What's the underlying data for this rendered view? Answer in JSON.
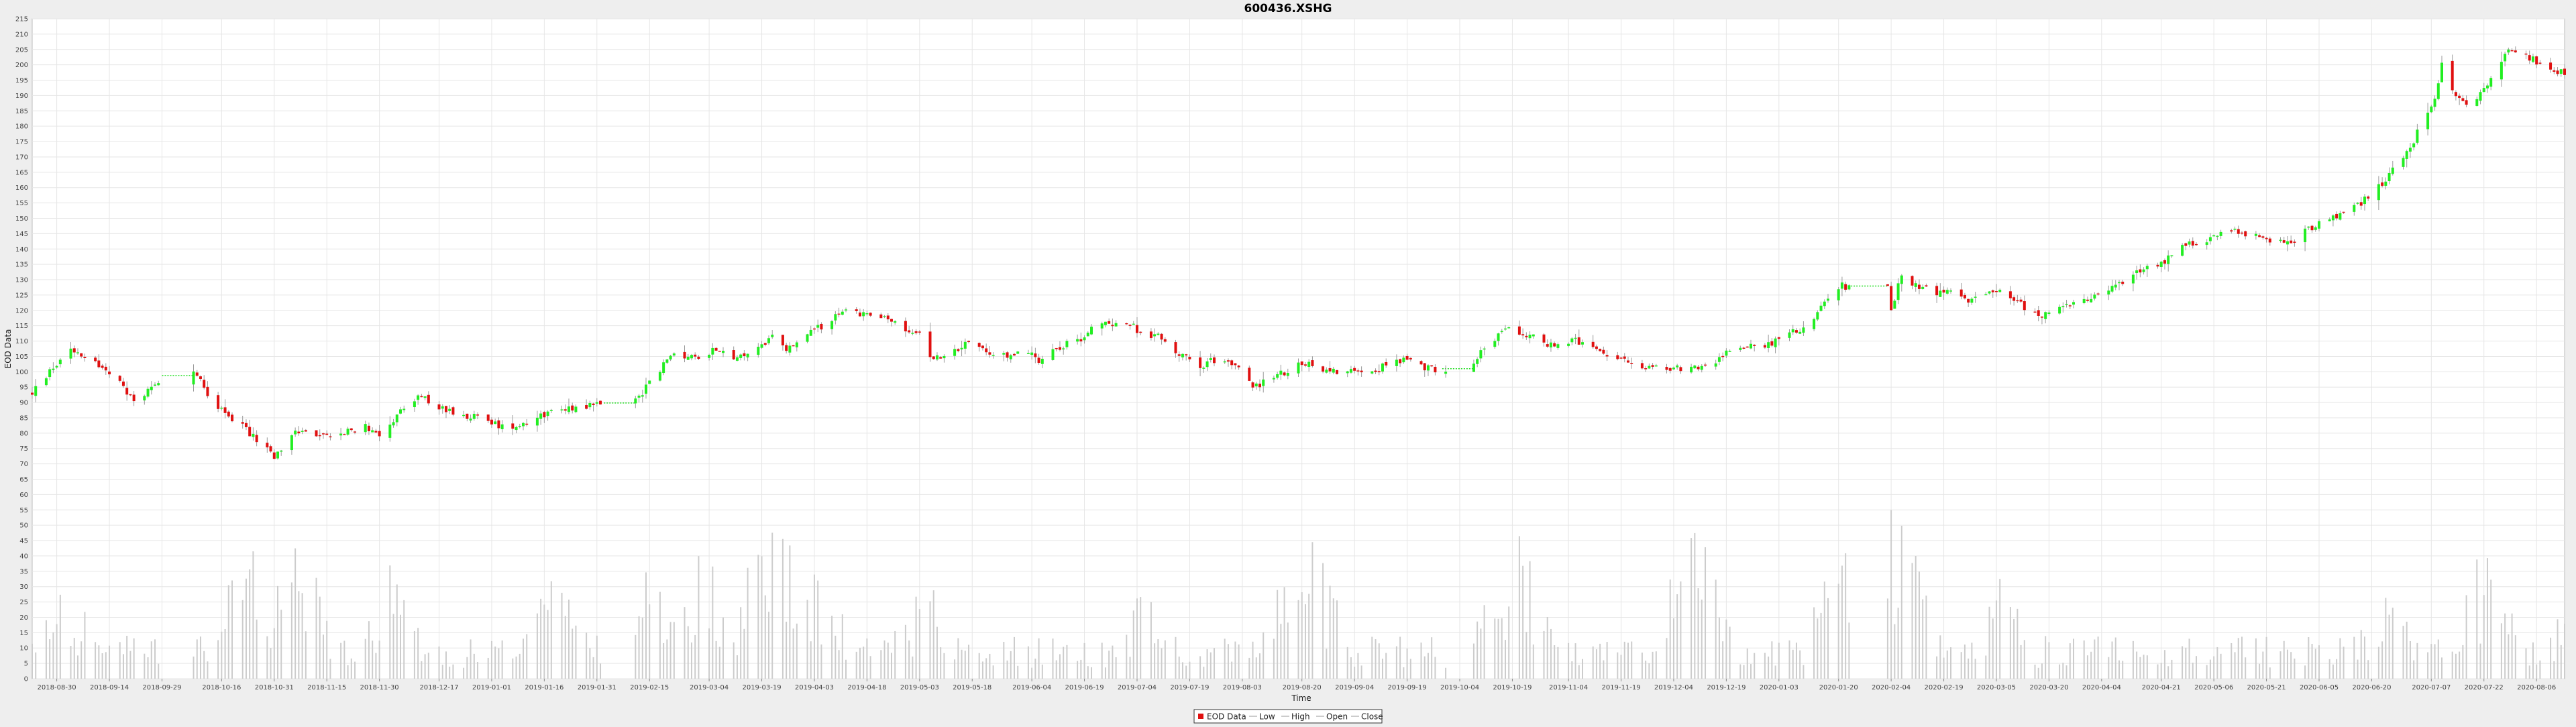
{
  "chart_data": {
    "type": "candlestick",
    "title": "600436.XSHG",
    "xlabel": "Time",
    "ylabel": "EOD Data",
    "ylim": [
      0,
      215
    ],
    "y_ticks": [
      0,
      5,
      10,
      15,
      20,
      25,
      30,
      35,
      40,
      45,
      50,
      55,
      60,
      65,
      70,
      75,
      80,
      85,
      90,
      95,
      100,
      105,
      110,
      115,
      120,
      125,
      130,
      135,
      140,
      145,
      150,
      155,
      160,
      165,
      170,
      175,
      180,
      185,
      190,
      195,
      200,
      205,
      210,
      215
    ],
    "x_range": [
      "2018-08-23",
      "2020-08-14"
    ],
    "x_ticks": [
      "2018-08-30",
      "2018-09-14",
      "2018-09-29",
      "2018-10-16",
      "2018-10-31",
      "2018-11-15",
      "2018-11-30",
      "2018-12-17",
      "2019-01-01",
      "2019-01-16",
      "2019-01-31",
      "2019-02-15",
      "2019-03-04",
      "2019-03-19",
      "2019-04-03",
      "2019-04-18",
      "2019-05-03",
      "2019-05-18",
      "2019-06-04",
      "2019-06-19",
      "2019-07-04",
      "2019-07-19",
      "2019-08-03",
      "2019-08-20",
      "2019-09-04",
      "2019-09-19",
      "2019-10-04",
      "2019-10-19",
      "2019-11-04",
      "2019-11-19",
      "2019-12-04",
      "2019-12-19",
      "2020-01-03",
      "2020-01-20",
      "2020-02-04",
      "2020-02-19",
      "2020-03-05",
      "2020-03-20",
      "2020-04-04",
      "2020-04-21",
      "2020-05-06",
      "2020-05-21",
      "2020-06-05",
      "2020-06-20",
      "2020-07-07",
      "2020-07-22",
      "2020-08-06"
    ],
    "grid": true,
    "legend": {
      "placement": "bottom-center",
      "entries": [
        "EOD Data",
        "Low",
        "High",
        "Open",
        "Close"
      ]
    },
    "colors": {
      "up": "#22ee22",
      "down": "#e01010",
      "wick": "#999999",
      "volume": "#cccccc",
      "gap_line": "#22dd22",
      "grid": "#e6e6e6",
      "plot_background": "#ffffff"
    },
    "price_path": [
      [
        "2018-08-23",
        93
      ],
      [
        "2018-08-28",
        100
      ],
      [
        "2018-09-03",
        108
      ],
      [
        "2018-09-10",
        103
      ],
      [
        "2018-09-17",
        96
      ],
      [
        "2018-09-21",
        90
      ],
      [
        "2018-09-26",
        95
      ],
      [
        "2018-09-30",
        100
      ],
      [
        "2018-10-08",
        101
      ],
      [
        "2018-10-12",
        92
      ],
      [
        "2018-10-16",
        88
      ],
      [
        "2018-10-22",
        82
      ],
      [
        "2018-10-27",
        77
      ],
      [
        "2018-10-31",
        72
      ],
      [
        "2018-11-03",
        75
      ],
      [
        "2018-11-06",
        81
      ],
      [
        "2018-11-12",
        79
      ],
      [
        "2018-11-19",
        80
      ],
      [
        "2018-11-26",
        82
      ],
      [
        "2018-11-30",
        80
      ],
      [
        "2018-12-07",
        88
      ],
      [
        "2018-12-12",
        92
      ],
      [
        "2018-12-17",
        88
      ],
      [
        "2018-12-24",
        86
      ],
      [
        "2018-12-29",
        85
      ],
      [
        "2019-01-04",
        82
      ],
      [
        "2019-01-09",
        83
      ],
      [
        "2019-01-15",
        86
      ],
      [
        "2019-01-21",
        88
      ],
      [
        "2019-01-28",
        89
      ],
      [
        "2019-02-03",
        90
      ],
      [
        "2019-02-12",
        92
      ],
      [
        "2019-02-18",
        101
      ],
      [
        "2019-02-22",
        106
      ],
      [
        "2019-03-01",
        104
      ],
      [
        "2019-03-06",
        108
      ],
      [
        "2019-03-12",
        104
      ],
      [
        "2019-03-18",
        108
      ],
      [
        "2019-03-22",
        111
      ],
      [
        "2019-03-26",
        107
      ],
      [
        "2019-04-01",
        112
      ],
      [
        "2019-04-08",
        117
      ],
      [
        "2019-04-12",
        120
      ],
      [
        "2019-04-17",
        119
      ],
      [
        "2019-04-24",
        117
      ],
      [
        "2019-04-29",
        113
      ],
      [
        "2019-05-03",
        113
      ],
      [
        "2019-05-06",
        105
      ],
      [
        "2019-05-10",
        104
      ],
      [
        "2019-05-17",
        110
      ],
      [
        "2019-05-22",
        106
      ],
      [
        "2019-05-28",
        105
      ],
      [
        "2019-06-03",
        107
      ],
      [
        "2019-06-06",
        104
      ],
      [
        "2019-06-11",
        108
      ],
      [
        "2019-06-17",
        110
      ],
      [
        "2019-06-21",
        114
      ],
      [
        "2019-06-26",
        116
      ],
      [
        "2019-07-01",
        116
      ],
      [
        "2019-07-05",
        113
      ],
      [
        "2019-07-11",
        111
      ],
      [
        "2019-07-17",
        105
      ],
      [
        "2019-07-22",
        102
      ],
      [
        "2019-07-26",
        104
      ],
      [
        "2019-08-01",
        102
      ],
      [
        "2019-08-06",
        95
      ],
      [
        "2019-08-10",
        97
      ],
      [
        "2019-08-15",
        100
      ],
      [
        "2019-08-21",
        103
      ],
      [
        "2019-08-26",
        101
      ],
      [
        "2019-08-31",
        100
      ],
      [
        "2019-09-06",
        101
      ],
      [
        "2019-09-11",
        101
      ],
      [
        "2019-09-16",
        104
      ],
      [
        "2019-09-20",
        103
      ],
      [
        "2019-09-25",
        101
      ],
      [
        "2019-09-29",
        101
      ],
      [
        "2019-10-08",
        103
      ],
      [
        "2019-10-12",
        109
      ],
      [
        "2019-10-17",
        114
      ],
      [
        "2019-10-22",
        113
      ],
      [
        "2019-10-28",
        109
      ],
      [
        "2019-11-01",
        109
      ],
      [
        "2019-11-06",
        110
      ],
      [
        "2019-11-11",
        107
      ],
      [
        "2019-11-16",
        105
      ],
      [
        "2019-11-21",
        103
      ],
      [
        "2019-11-26",
        102
      ],
      [
        "2019-12-02",
        101
      ],
      [
        "2019-12-09",
        101
      ],
      [
        "2019-12-14",
        102
      ],
      [
        "2019-12-19",
        106
      ],
      [
        "2019-12-25",
        109
      ],
      [
        "2019-12-31",
        109
      ],
      [
        "2020-01-06",
        112
      ],
      [
        "2020-01-12",
        116
      ],
      [
        "2020-01-16",
        122
      ],
      [
        "2020-01-21",
        128
      ],
      [
        "2020-02-03",
        127
      ],
      [
        "2020-02-04",
        119
      ],
      [
        "2020-02-07",
        132
      ],
      [
        "2020-02-11",
        128
      ],
      [
        "2020-02-17",
        126
      ],
      [
        "2020-02-24",
        125
      ],
      [
        "2020-02-27",
        123
      ],
      [
        "2020-03-03",
        127
      ],
      [
        "2020-03-07",
        127
      ],
      [
        "2020-03-12",
        122
      ],
      [
        "2020-03-17",
        118
      ],
      [
        "2020-03-21",
        119
      ],
      [
        "2020-03-27",
        122
      ],
      [
        "2020-04-01",
        124
      ],
      [
        "2020-04-07",
        128
      ],
      [
        "2020-04-12",
        131
      ],
      [
        "2020-04-17",
        134
      ],
      [
        "2020-04-22",
        136
      ],
      [
        "2020-04-27",
        142
      ],
      [
        "2020-05-01",
        141
      ],
      [
        "2020-05-07",
        144
      ],
      [
        "2020-05-12",
        146
      ],
      [
        "2020-05-18",
        144
      ],
      [
        "2020-05-23",
        142
      ],
      [
        "2020-05-28",
        142
      ],
      [
        "2020-06-01",
        146
      ],
      [
        "2020-06-06",
        149
      ],
      [
        "2020-06-12",
        151
      ],
      [
        "2020-06-17",
        155
      ],
      [
        "2020-06-21",
        159
      ],
      [
        "2020-06-25",
        164
      ],
      [
        "2020-06-30",
        171
      ],
      [
        "2020-07-04",
        180
      ],
      [
        "2020-07-08",
        188
      ],
      [
        "2020-07-10",
        200
      ],
      [
        "2020-07-14",
        190
      ],
      [
        "2020-07-19",
        187
      ],
      [
        "2020-07-24",
        196
      ],
      [
        "2020-07-29",
        204
      ],
      [
        "2020-08-03",
        203
      ],
      [
        "2020-08-08",
        200
      ],
      [
        "2020-08-14",
        197
      ]
    ],
    "volume_peaks": [
      [
        "2018-09-02",
        34
      ],
      [
        "2018-10-24",
        48
      ],
      [
        "2018-11-06",
        50
      ],
      [
        "2018-12-03",
        38
      ],
      [
        "2019-01-20",
        37
      ],
      [
        "2019-02-15",
        40
      ],
      [
        "2019-03-02",
        48
      ],
      [
        "2019-03-22",
        64
      ],
      [
        "2019-04-02",
        43
      ],
      [
        "2019-05-05",
        37
      ],
      [
        "2019-07-05",
        30
      ],
      [
        "2019-08-21",
        58
      ],
      [
        "2019-10-20",
        55
      ],
      [
        "2019-12-10",
        53
      ],
      [
        "2020-01-21",
        44
      ],
      [
        "2020-02-05",
        60
      ],
      [
        "2020-03-05",
        35
      ],
      [
        "2020-06-24",
        32
      ],
      [
        "2020-07-20",
        48
      ],
      [
        "2020-08-11",
        22
      ]
    ]
  }
}
